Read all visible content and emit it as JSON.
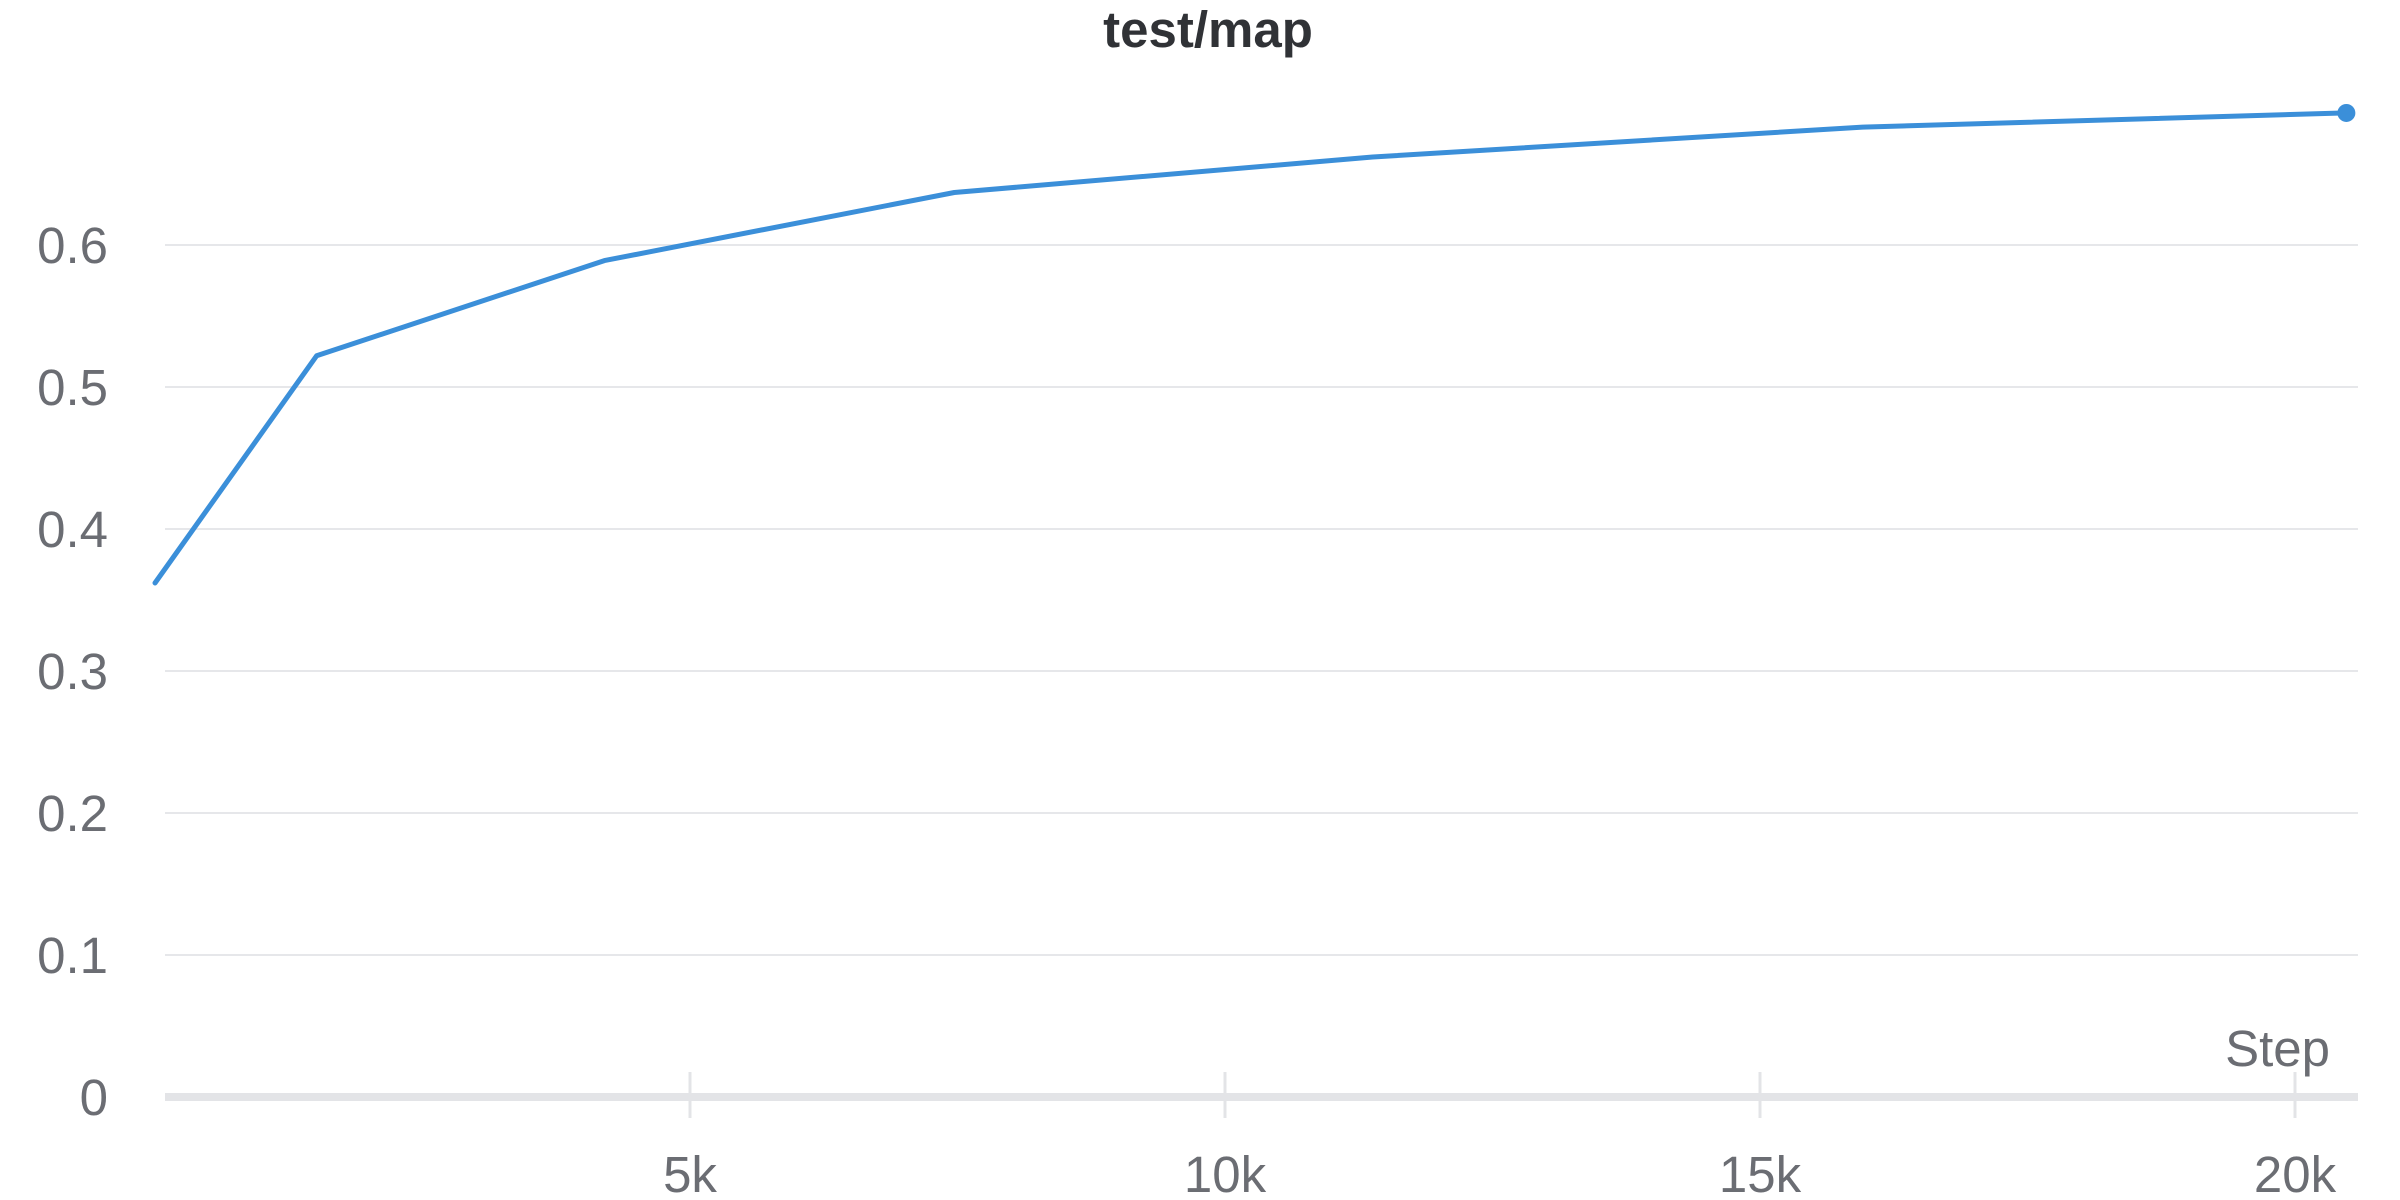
{
  "chart_data": {
    "type": "line",
    "title": "test/map",
    "xlabel": "Step",
    "ylabel": "",
    "xlim": [
      -500,
      20600
    ],
    "ylim": [
      0,
      0.7
    ],
    "x_ticks": [
      5000,
      10000,
      15000,
      20000
    ],
    "x_tick_labels": [
      "5k",
      "10k",
      "15k",
      "20k"
    ],
    "y_ticks": [
      0,
      0.1,
      0.2,
      0.3,
      0.4,
      0.5,
      0.6
    ],
    "y_tick_labels": [
      "0",
      "0.1",
      "0.2",
      "0.3",
      "0.4",
      "0.5",
      "0.6"
    ],
    "grid": true,
    "series": [
      {
        "color": "#3b8fd9",
        "x": [
          0,
          1510,
          4200,
          7470,
          11380,
          15960,
          20480
        ],
        "y": [
          0.362,
          0.522,
          0.589,
          0.637,
          0.662,
          0.683,
          0.693
        ],
        "end_marker": true
      }
    ]
  }
}
